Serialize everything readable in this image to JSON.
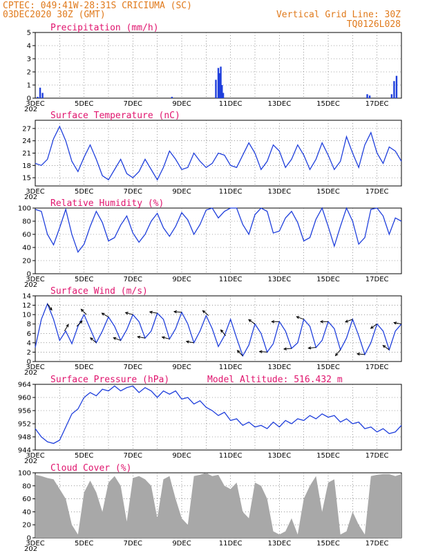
{
  "header": {
    "line1_left": "CPTEC:   049:41W-28:31S   CRICIUMA (SC)",
    "line2_left": "03DEC2020 30Z (GMT)",
    "line1_right": "Vertical Grid Line: 30Z",
    "line2_right": "TQ0126L028"
  },
  "x_axis": {
    "day_start": 3,
    "day_end": 18,
    "tick_labels": [
      "3DEC",
      "5DEC",
      "7DEC",
      "9DEC",
      "11DEC",
      "13DEC",
      "15DEC",
      "17DEC"
    ],
    "tick_days": [
      3,
      5,
      7,
      9,
      11,
      13,
      15,
      17
    ],
    "year_stub": "202"
  },
  "colors": {
    "series": "#1f3fdc",
    "title": "#e0156e",
    "header": "#e07a1c",
    "cloud": "#a8a8a8"
  },
  "chart_data": [
    {
      "type": "bar",
      "title": "Precipitation (mm/h)",
      "ylim": [
        0,
        5
      ],
      "yticks": [
        0,
        1,
        2,
        3,
        4,
        5
      ],
      "x": [
        3.1,
        3.2,
        3.3,
        8.6,
        10.4,
        10.5,
        10.55,
        10.6,
        10.65,
        10.7,
        16.6,
        16.7,
        17.6,
        17.7,
        17.8
      ],
      "values": [
        0.1,
        0.8,
        0.4,
        0.1,
        1.4,
        2.3,
        1.9,
        2.4,
        1.0,
        0.4,
        0.3,
        0.2,
        0.3,
        1.3,
        1.7
      ]
    },
    {
      "type": "line",
      "title": "Surface Temperature (nC)",
      "ylim": [
        13,
        29
      ],
      "yticks": [
        15,
        18,
        21,
        24,
        27
      ],
      "x": [
        3.0,
        3.25,
        3.5,
        3.75,
        4.0,
        4.25,
        4.5,
        4.75,
        5.0,
        5.25,
        5.5,
        5.75,
        6.0,
        6.25,
        6.5,
        6.75,
        7.0,
        7.25,
        7.5,
        7.75,
        8.0,
        8.25,
        8.5,
        8.75,
        9.0,
        9.25,
        9.5,
        9.75,
        10.0,
        10.25,
        10.5,
        10.75,
        11.0,
        11.25,
        11.5,
        11.75,
        12.0,
        12.25,
        12.5,
        12.75,
        13.0,
        13.25,
        13.5,
        13.75,
        14.0,
        14.25,
        14.5,
        14.75,
        15.0,
        15.25,
        15.5,
        15.75,
        16.0,
        16.25,
        16.5,
        16.75,
        17.0,
        17.25,
        17.5,
        17.75,
        18.0
      ],
      "values": [
        18.5,
        18.0,
        19.5,
        24.5,
        27.5,
        24.0,
        19.0,
        16.5,
        20.0,
        23.0,
        19.5,
        15.5,
        14.5,
        17.0,
        19.5,
        16.0,
        15.0,
        16.5,
        19.5,
        17.0,
        14.5,
        17.5,
        21.5,
        19.5,
        17.0,
        17.5,
        21.0,
        19.0,
        17.5,
        18.5,
        21.0,
        20.5,
        18.0,
        17.5,
        20.5,
        23.5,
        21.0,
        17.0,
        19.0,
        23.0,
        21.5,
        17.5,
        19.5,
        23.0,
        20.5,
        17.0,
        19.5,
        23.5,
        20.5,
        17.0,
        19.0,
        25.0,
        21.0,
        17.5,
        23.0,
        26.0,
        21.0,
        18.5,
        22.5,
        21.5,
        19.0
      ]
    },
    {
      "type": "line",
      "title": "Relative Humidity (%)",
      "ylim": [
        0,
        100
      ],
      "yticks": [
        0,
        20,
        40,
        60,
        80,
        100
      ],
      "x": [
        3.0,
        3.25,
        3.5,
        3.75,
        4.0,
        4.25,
        4.5,
        4.75,
        5.0,
        5.25,
        5.5,
        5.75,
        6.0,
        6.25,
        6.5,
        6.75,
        7.0,
        7.25,
        7.5,
        7.75,
        8.0,
        8.25,
        8.5,
        8.75,
        9.0,
        9.25,
        9.5,
        9.75,
        10.0,
        10.25,
        10.5,
        10.75,
        11.0,
        11.25,
        11.5,
        11.75,
        12.0,
        12.25,
        12.5,
        12.75,
        13.0,
        13.25,
        13.5,
        13.75,
        14.0,
        14.25,
        14.5,
        14.75,
        15.0,
        15.25,
        15.5,
        15.75,
        16.0,
        16.25,
        16.5,
        16.75,
        17.0,
        17.25,
        17.5,
        17.75,
        18.0
      ],
      "values": [
        98,
        95,
        60,
        44,
        70,
        98,
        60,
        33,
        45,
        72,
        95,
        78,
        50,
        55,
        74,
        88,
        62,
        48,
        60,
        80,
        92,
        70,
        57,
        72,
        93,
        82,
        60,
        75,
        97,
        100,
        85,
        95,
        100,
        100,
        75,
        60,
        90,
        100,
        95,
        62,
        65,
        85,
        95,
        78,
        50,
        55,
        83,
        100,
        72,
        42,
        72,
        100,
        80,
        45,
        55,
        98,
        100,
        88,
        60,
        85,
        80
      ]
    },
    {
      "type": "line",
      "title": "Surface Wind (m/s)",
      "ylim": [
        0,
        14
      ],
      "yticks": [
        0,
        2,
        4,
        6,
        8,
        10,
        12,
        14
      ],
      "x": [
        3.0,
        3.25,
        3.5,
        3.75,
        4.0,
        4.25,
        4.5,
        4.75,
        5.0,
        5.25,
        5.5,
        5.75,
        6.0,
        6.25,
        6.5,
        6.75,
        7.0,
        7.25,
        7.5,
        7.75,
        8.0,
        8.25,
        8.5,
        8.75,
        9.0,
        9.25,
        9.5,
        9.75,
        10.0,
        10.25,
        10.5,
        10.75,
        11.0,
        11.25,
        11.5,
        11.75,
        12.0,
        12.25,
        12.5,
        12.75,
        13.0,
        13.25,
        13.5,
        13.75,
        14.0,
        14.25,
        14.5,
        14.75,
        15.0,
        15.25,
        15.5,
        15.75,
        16.0,
        16.25,
        16.5,
        16.75,
        17.0,
        17.25,
        17.5,
        17.75,
        18.0
      ],
      "values": [
        3.0,
        9.0,
        12.3,
        9.0,
        4.5,
        6.5,
        3.8,
        7.5,
        10.0,
        7.0,
        4.0,
        6.5,
        9.5,
        7.5,
        4.5,
        6.8,
        10.0,
        8.5,
        5.0,
        6.5,
        10.3,
        9.0,
        4.8,
        7.0,
        10.5,
        8.0,
        4.0,
        6.5,
        9.8,
        7.0,
        3.2,
        5.5,
        9.0,
        5.0,
        1.2,
        3.5,
        8.0,
        6.0,
        2.0,
        3.8,
        8.5,
        6.5,
        2.8,
        4.0,
        9.0,
        7.5,
        3.0,
        4.5,
        8.5,
        7.0,
        2.5,
        5.0,
        9.0,
        5.5,
        1.5,
        4.0,
        8.0,
        6.5,
        2.5,
        6.5,
        8.0
      ],
      "arrows_x": [
        3.5,
        4.2,
        4.7,
        5.1,
        5.5,
        6.0,
        6.5,
        7.0,
        7.5,
        8.0,
        8.5,
        9.0,
        9.5,
        10.1,
        10.8,
        11.5,
        12.0,
        12.5,
        13.0,
        13.5,
        14.0,
        14.5,
        15.0,
        15.5,
        16.0,
        16.5,
        17.0,
        17.5,
        18.0
      ],
      "arrows_dir_deg": [
        305,
        60,
        45,
        135,
        140,
        150,
        160,
        165,
        170,
        170,
        165,
        175,
        170,
        140,
        130,
        135,
        145,
        175,
        180,
        185,
        160,
        185,
        180,
        230,
        200,
        175,
        215,
        145,
        170
      ]
    },
    {
      "type": "line",
      "title": "Surface Pressure (hPa)",
      "annotation": "Model Altitude: 516.432 m",
      "ylim": [
        944,
        964
      ],
      "yticks": [
        944,
        948,
        952,
        956,
        960,
        964
      ],
      "x": [
        3.0,
        3.25,
        3.5,
        3.75,
        4.0,
        4.25,
        4.5,
        4.75,
        5.0,
        5.25,
        5.5,
        5.75,
        6.0,
        6.25,
        6.5,
        6.75,
        7.0,
        7.25,
        7.5,
        7.75,
        8.0,
        8.25,
        8.5,
        8.75,
        9.0,
        9.25,
        9.5,
        9.75,
        10.0,
        10.25,
        10.5,
        10.75,
        11.0,
        11.25,
        11.5,
        11.75,
        12.0,
        12.25,
        12.5,
        12.75,
        13.0,
        13.25,
        13.5,
        13.75,
        14.0,
        14.25,
        14.5,
        14.75,
        15.0,
        15.25,
        15.5,
        15.75,
        16.0,
        16.25,
        16.5,
        16.75,
        17.0,
        17.25,
        17.5,
        17.75,
        18.0
      ],
      "values": [
        950.5,
        948.0,
        946.5,
        946.0,
        947.0,
        951.0,
        955.0,
        956.5,
        960.0,
        961.5,
        960.5,
        962.5,
        962.0,
        963.5,
        962.0,
        963.0,
        963.5,
        961.5,
        963.0,
        962.0,
        960.0,
        962.0,
        961.0,
        962.0,
        959.5,
        960.0,
        958.0,
        959.0,
        957.0,
        956.0,
        954.5,
        955.5,
        953.0,
        953.5,
        951.5,
        952.5,
        951.0,
        951.5,
        950.5,
        952.5,
        951.0,
        953.0,
        952.0,
        953.5,
        953.0,
        954.5,
        953.5,
        955.0,
        954.0,
        954.5,
        952.5,
        953.5,
        952.0,
        952.5,
        950.5,
        951.0,
        949.5,
        950.5,
        949.0,
        949.5,
        951.5
      ]
    },
    {
      "type": "area",
      "title": "Cloud Cover (%)",
      "ylim": [
        0,
        100
      ],
      "yticks": [
        0,
        20,
        40,
        60,
        80,
        100
      ],
      "x": [
        3.0,
        3.25,
        3.5,
        3.75,
        4.0,
        4.25,
        4.5,
        4.75,
        5.0,
        5.25,
        5.5,
        5.75,
        6.0,
        6.25,
        6.5,
        6.75,
        7.0,
        7.25,
        7.5,
        7.75,
        8.0,
        8.25,
        8.5,
        8.75,
        9.0,
        9.25,
        9.5,
        9.75,
        10.0,
        10.25,
        10.5,
        10.75,
        11.0,
        11.25,
        11.5,
        11.75,
        12.0,
        12.25,
        12.5,
        12.75,
        13.0,
        13.25,
        13.5,
        13.75,
        14.0,
        14.25,
        14.5,
        14.75,
        15.0,
        15.25,
        15.5,
        15.75,
        16.0,
        16.25,
        16.5,
        16.75,
        17.0,
        17.25,
        17.5,
        17.75,
        18.0
      ],
      "values": [
        97,
        95,
        92,
        90,
        75,
        60,
        20,
        5,
        70,
        88,
        70,
        40,
        85,
        95,
        80,
        25,
        92,
        95,
        90,
        80,
        30,
        90,
        95,
        60,
        30,
        20,
        95,
        97,
        100,
        95,
        97,
        80,
        75,
        85,
        40,
        30,
        85,
        80,
        60,
        10,
        5,
        10,
        30,
        5,
        60,
        80,
        95,
        40,
        85,
        90,
        5,
        10,
        40,
        20,
        5,
        95,
        97,
        98,
        98,
        95,
        98
      ]
    }
  ]
}
